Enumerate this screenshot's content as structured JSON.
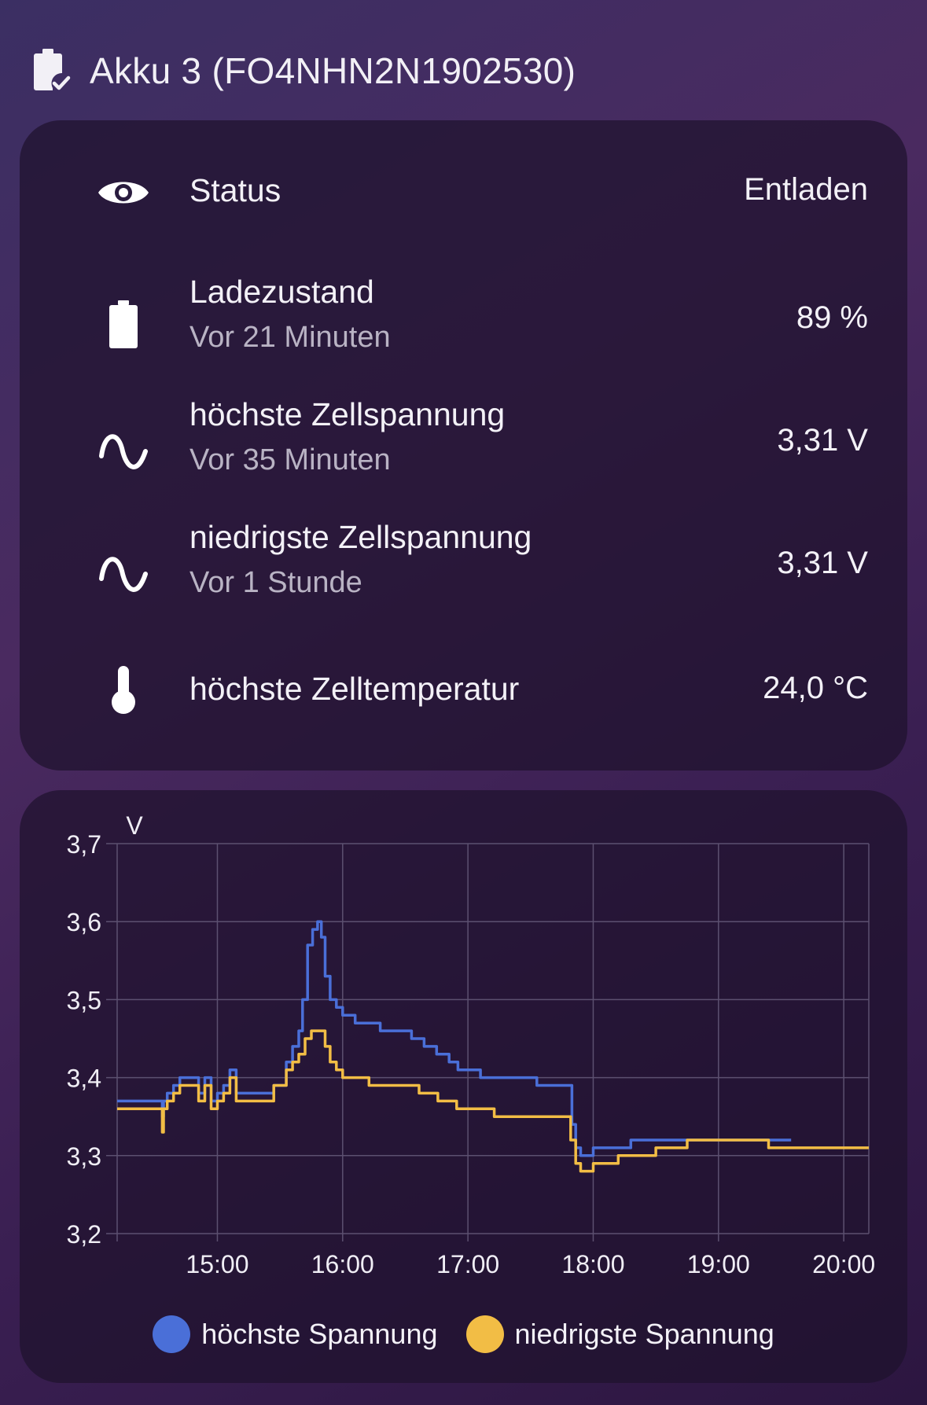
{
  "header": {
    "title": "Akku 3 (FO4NHN2N1902530)",
    "icon": "battery-check-icon"
  },
  "entities": [
    {
      "icon": "eye-icon",
      "name": "Status",
      "secondary": "",
      "value": "Entladen"
    },
    {
      "icon": "battery-icon",
      "name": "Ladezustand",
      "secondary": "Vor 21 Minuten",
      "value": "89 %"
    },
    {
      "icon": "sine-wave-icon",
      "name": "höchste Zellspannung",
      "secondary": "Vor 35 Minuten",
      "value": "3,31 V"
    },
    {
      "icon": "sine-wave-icon",
      "name": "niedrigste Zellspannung",
      "secondary": "Vor 1 Stunde",
      "value": "3,31 V"
    },
    {
      "icon": "thermometer-icon",
      "name": "höchste Zelltemperatur",
      "secondary": "",
      "value": "24,0 °C"
    }
  ],
  "chart_data": {
    "type": "line",
    "ylabel": "V",
    "ylim": [
      3.2,
      3.7
    ],
    "yticks": [
      "3,7",
      "3,6",
      "3,5",
      "3,4",
      "3,3",
      "3,2"
    ],
    "xlim": [
      14.2,
      20.2
    ],
    "xticks": [
      {
        "t": 15,
        "label": "15:00"
      },
      {
        "t": 16,
        "label": "16:00"
      },
      {
        "t": 17,
        "label": "17:00"
      },
      {
        "t": 18,
        "label": "18:00"
      },
      {
        "t": 19,
        "label": "19:00"
      },
      {
        "t": 20,
        "label": "20:00"
      }
    ],
    "grid": true,
    "legend_position": "bottom",
    "series": [
      {
        "name": "höchste Spannung",
        "color": "#4a6fd8",
        "points": [
          [
            14.2,
            3.37
          ],
          [
            14.55,
            3.37
          ],
          [
            14.56,
            3.35
          ],
          [
            14.57,
            3.37
          ],
          [
            14.6,
            3.38
          ],
          [
            14.65,
            3.39
          ],
          [
            14.7,
            3.4
          ],
          [
            14.8,
            3.4
          ],
          [
            14.85,
            3.38
          ],
          [
            14.9,
            3.4
          ],
          [
            14.95,
            3.37
          ],
          [
            15.0,
            3.38
          ],
          [
            15.05,
            3.39
          ],
          [
            15.1,
            3.41
          ],
          [
            15.15,
            3.38
          ],
          [
            15.25,
            3.38
          ],
          [
            15.4,
            3.38
          ],
          [
            15.45,
            3.39
          ],
          [
            15.55,
            3.42
          ],
          [
            15.6,
            3.44
          ],
          [
            15.65,
            3.46
          ],
          [
            15.68,
            3.5
          ],
          [
            15.72,
            3.57
          ],
          [
            15.76,
            3.59
          ],
          [
            15.8,
            3.6
          ],
          [
            15.83,
            3.58
          ],
          [
            15.86,
            3.53
          ],
          [
            15.9,
            3.5
          ],
          [
            15.95,
            3.49
          ],
          [
            16.0,
            3.48
          ],
          [
            16.1,
            3.47
          ],
          [
            16.25,
            3.47
          ],
          [
            16.3,
            3.46
          ],
          [
            16.5,
            3.46
          ],
          [
            16.55,
            3.45
          ],
          [
            16.65,
            3.44
          ],
          [
            16.75,
            3.43
          ],
          [
            16.85,
            3.42
          ],
          [
            16.92,
            3.41
          ],
          [
            17.05,
            3.41
          ],
          [
            17.1,
            3.4
          ],
          [
            17.5,
            3.4
          ],
          [
            17.55,
            3.39
          ],
          [
            17.8,
            3.39
          ],
          [
            17.83,
            3.34
          ],
          [
            17.86,
            3.31
          ],
          [
            17.9,
            3.3
          ],
          [
            18.0,
            3.31
          ],
          [
            18.2,
            3.31
          ],
          [
            18.3,
            3.32
          ],
          [
            18.6,
            3.32
          ],
          [
            19.0,
            3.32
          ],
          [
            19.4,
            3.32
          ],
          [
            19.58,
            3.32
          ]
        ]
      },
      {
        "name": "niedrigste Spannung",
        "color": "#f2bd45",
        "points": [
          [
            14.2,
            3.36
          ],
          [
            14.55,
            3.36
          ],
          [
            14.56,
            3.33
          ],
          [
            14.57,
            3.36
          ],
          [
            14.6,
            3.37
          ],
          [
            14.65,
            3.38
          ],
          [
            14.7,
            3.39
          ],
          [
            14.8,
            3.39
          ],
          [
            14.85,
            3.37
          ],
          [
            14.9,
            3.39
          ],
          [
            14.95,
            3.36
          ],
          [
            15.0,
            3.37
          ],
          [
            15.05,
            3.38
          ],
          [
            15.1,
            3.4
          ],
          [
            15.15,
            3.37
          ],
          [
            15.25,
            3.37
          ],
          [
            15.4,
            3.37
          ],
          [
            15.45,
            3.39
          ],
          [
            15.55,
            3.41
          ],
          [
            15.6,
            3.42
          ],
          [
            15.65,
            3.43
          ],
          [
            15.7,
            3.45
          ],
          [
            15.75,
            3.46
          ],
          [
            15.82,
            3.46
          ],
          [
            15.86,
            3.44
          ],
          [
            15.9,
            3.42
          ],
          [
            15.95,
            3.41
          ],
          [
            16.0,
            3.4
          ],
          [
            16.2,
            3.4
          ],
          [
            16.21,
            3.39
          ],
          [
            16.6,
            3.39
          ],
          [
            16.61,
            3.38
          ],
          [
            16.75,
            3.38
          ],
          [
            16.76,
            3.37
          ],
          [
            16.9,
            3.37
          ],
          [
            16.91,
            3.36
          ],
          [
            17.2,
            3.36
          ],
          [
            17.21,
            3.35
          ],
          [
            17.8,
            3.35
          ],
          [
            17.82,
            3.32
          ],
          [
            17.86,
            3.29
          ],
          [
            17.9,
            3.28
          ],
          [
            18.0,
            3.29
          ],
          [
            18.2,
            3.3
          ],
          [
            18.45,
            3.3
          ],
          [
            18.5,
            3.31
          ],
          [
            18.7,
            3.31
          ],
          [
            18.75,
            3.32
          ],
          [
            19.3,
            3.32
          ],
          [
            19.4,
            3.31
          ],
          [
            20.2,
            3.31
          ]
        ]
      }
    ]
  }
}
